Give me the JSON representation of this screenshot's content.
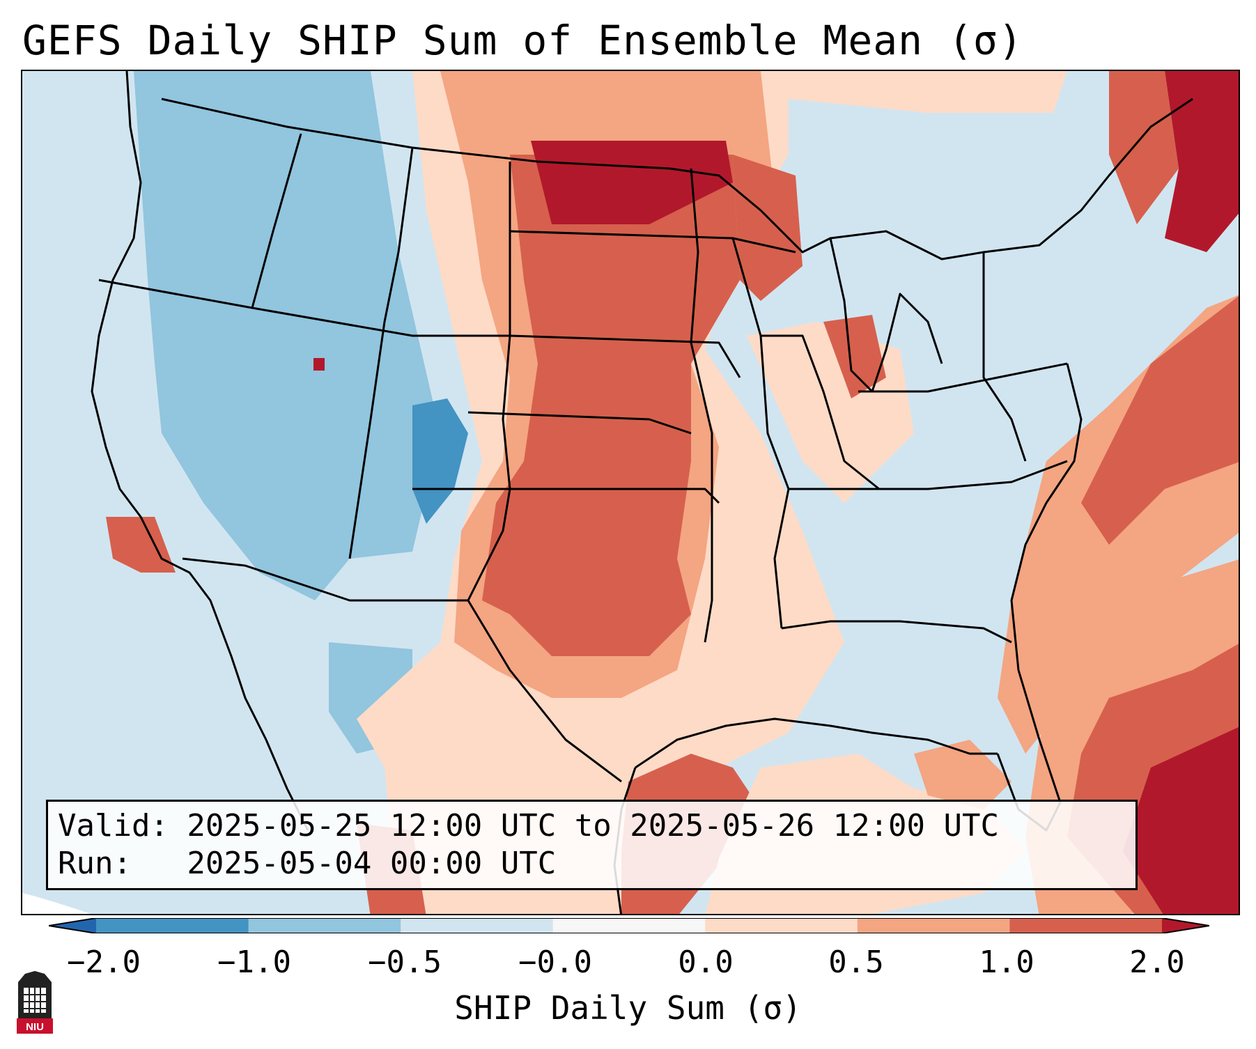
{
  "title": "GEFS Daily SHIP Sum of Ensemble Mean (σ)",
  "info": {
    "valid_line": "Valid: 2025-05-25 12:00 UTC to 2025-05-26 12:00 UTC",
    "run_line": "Run:   2025-05-04 00:00 UTC"
  },
  "colorbar": {
    "label": "SHIP Daily Sum (σ)",
    "ticks": [
      "−2.0",
      "−1.0",
      "−0.5",
      "−0.0",
      "0.0",
      "0.5",
      "1.0",
      "2.0"
    ],
    "colors": [
      "#2166ac",
      "#4393c3",
      "#92c5de",
      "#d1e5f0",
      "#f7f7f7",
      "#fddbc7",
      "#f4a582",
      "#d6604d",
      "#b2182b"
    ]
  },
  "logo": {
    "text": "NIU"
  },
  "map": {
    "ocean_color": "#d1e5f0",
    "region_colors": {
      "strong_negative": "#4393c3",
      "negative": "#92c5de",
      "slightly_negative": "#d1e5f0",
      "slightly_positive": "#fddbc7",
      "positive": "#f4a582",
      "strong_positive": "#d6604d",
      "very_strong_positive": "#b2182b"
    }
  }
}
